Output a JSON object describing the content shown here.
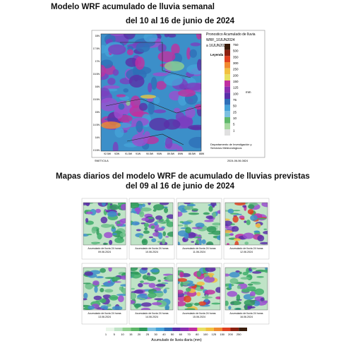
{
  "header": {
    "title": "Modelo WRF acumulado de lluvia semanal",
    "subtitle": "del 10 al 16 de junio de 2024"
  },
  "weekly_map": {
    "legend_lines": [
      "Pronostico Acumulado de lluvia",
      "WRF_10JUN2024",
      "a 16JUN2024"
    ],
    "legend_heading": "Leyenda",
    "unit": "mm",
    "colorbar_ticks": [
      750,
      500,
      350,
      300,
      250,
      200,
      150,
      125,
      100,
      75,
      50,
      25,
      10,
      5,
      1
    ],
    "lat_labels": [
      "18N",
      "17.5N",
      "17N",
      "16.5N",
      "16N",
      "15.5N",
      "15N",
      "14.5N",
      "14N",
      "13.5N"
    ],
    "lon_labels": [
      "92.5W",
      "92W",
      "91.5W",
      "91W",
      "90.5W",
      "90W",
      "89.5W",
      "89W",
      "88.5W",
      "88W"
    ],
    "source": "SNET/CILA",
    "timestamp": "2024-06-06-0824",
    "department": [
      "Departamento de Investigación y",
      "Servicios Meteorológicos"
    ]
  },
  "daily": {
    "title": "Mapas diarios del modelo WRF de acumulado de lluvias previstas",
    "subtitle": "del 09 al 16 de junio de 2024",
    "maps": [
      {
        "caption": "Acumulado de lluvia 24 horas",
        "date": "09.06.2024"
      },
      {
        "caption": "Acumulado de lluvia 24 horas",
        "date": "10.06.2024"
      },
      {
        "caption": "Acumulado de lluvia 24 horas",
        "date": "11.06.2024"
      },
      {
        "caption": "Acumulado de lluvia 24 horas",
        "date": "12.06.2024"
      },
      {
        "caption": "Acumulado de lluvia 24 horas",
        "date": "13.06.2024"
      },
      {
        "caption": "Acumulado de lluvia 24 horas",
        "date": "14.06.2024"
      },
      {
        "caption": "Acumulado de lluvia 24 horas",
        "date": "15.06.2024"
      },
      {
        "caption": "Acumulado de lluvia 24 horas",
        "date": "16.06.2024"
      }
    ],
    "colorbar_ticks": [
      1,
      5,
      10,
      15,
      20,
      25,
      30,
      40,
      50,
      60,
      70,
      80,
      100,
      125,
      150,
      200,
      250
    ],
    "colorbar_label": "Acumulado de lluvia diaria (mm)"
  }
}
